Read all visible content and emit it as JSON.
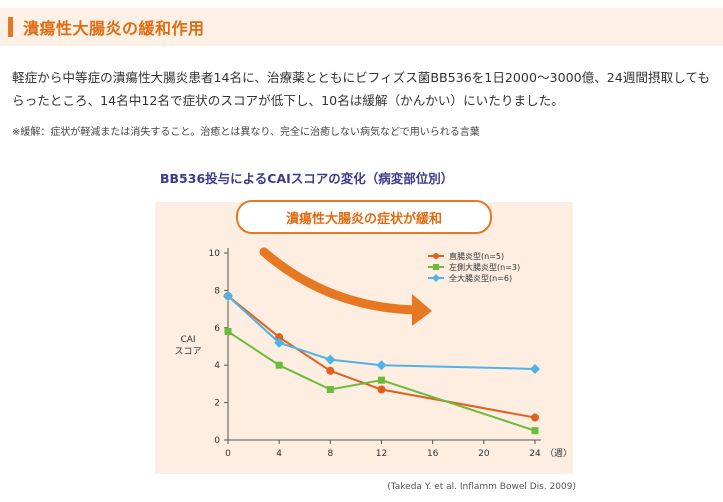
{
  "header": {
    "title": "潰瘍性大腸炎の緩和作用"
  },
  "body": {
    "paragraph": "軽症から中等症の潰瘍性大腸炎患者14名に、治療薬とともにビフィズス菌BB536を1日2000〜3000億、24週間摂取してもらったところ、14名中12名で症状のスコアが低下し、10名は緩解（かんかい）にいたりました。",
    "note": "※緩解：症状が軽減または消失すること。治癒とは異なり、完全に治癒しない病気などで用いられる言葉"
  },
  "figure": {
    "callout": "潰瘍性大腸炎の症状が緩和",
    "citation": "(Takeda Y. et al. Inflamm Bowel Dis. 2009)"
  },
  "colors": {
    "accent": "#e87722",
    "series_rectum": "#e0611f",
    "series_left": "#6dbb3b",
    "series_total": "#4fb3e8"
  },
  "chart_data": {
    "type": "line",
    "title": "BB536投与によるCAIスコアの変化（病変部位別）",
    "xlabel": "（週）",
    "ylabel": "CAI スコア",
    "ylim": [
      0,
      10
    ],
    "yticks": [
      0,
      2,
      4,
      6,
      8,
      10
    ],
    "xticks": [
      0,
      4,
      8,
      12,
      16,
      20,
      24
    ],
    "legend_position": "top-right",
    "series": [
      {
        "name": "直腸炎型(n=5)",
        "marker": "circle",
        "color": "#e0611f",
        "x": [
          0,
          4,
          8,
          12,
          24
        ],
        "y": [
          7.7,
          5.5,
          3.7,
          2.7,
          1.2
        ]
      },
      {
        "name": "左側大腸炎型(n=3)",
        "marker": "square",
        "color": "#6dbb3b",
        "x": [
          0,
          4,
          8,
          12,
          24
        ],
        "y": [
          5.8,
          4.0,
          2.7,
          3.2,
          0.5
        ]
      },
      {
        "name": "全大腸炎型(n=6)",
        "marker": "diamond",
        "color": "#4fb3e8",
        "x": [
          0,
          4,
          8,
          12,
          24
        ],
        "y": [
          7.7,
          5.2,
          4.3,
          4.0,
          3.8
        ]
      }
    ]
  }
}
